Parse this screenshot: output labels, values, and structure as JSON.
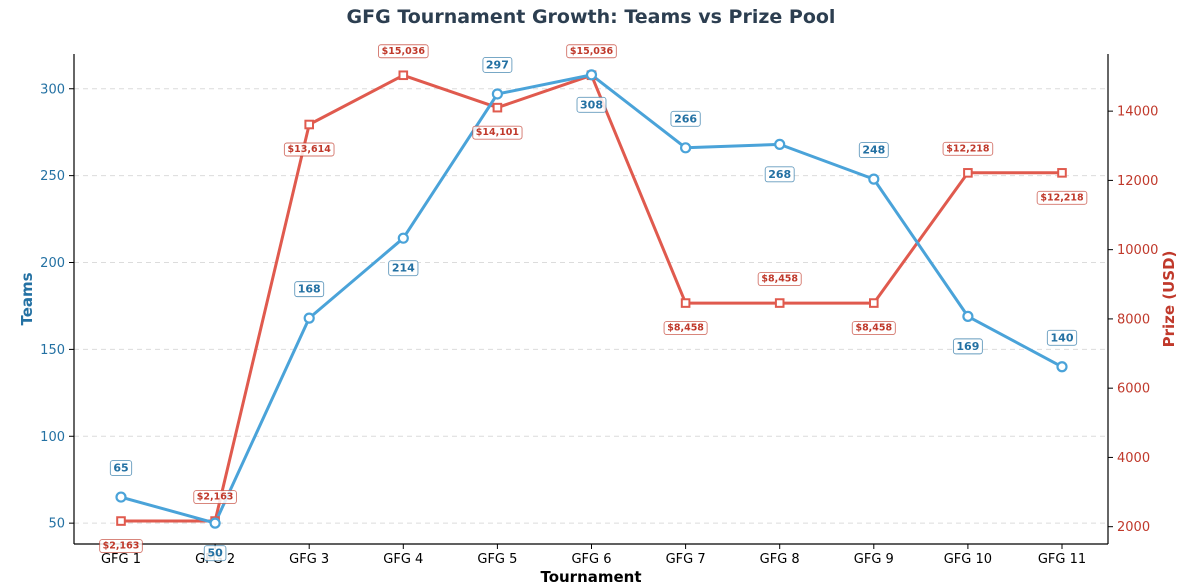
{
  "chart_data": {
    "type": "line",
    "title": "GFG Tournament Growth: Teams vs Prize Pool",
    "xlabel": "Tournament",
    "ylabel_left": "Teams",
    "ylabel_right": "Prize (USD)",
    "categories": [
      "GFG 1",
      "GFG 2",
      "GFG 3",
      "GFG 4",
      "GFG 5",
      "GFG 6",
      "GFG 7",
      "GFG 8",
      "GFG 9",
      "GFG 10",
      "GFG 11"
    ],
    "series": [
      {
        "axis": "left",
        "color": "#4aa3d9",
        "label_color": "#2471a3",
        "marker": "circle",
        "values": [
          65,
          50,
          168,
          214,
          297,
          308,
          266,
          268,
          248,
          169,
          140
        ],
        "labels": [
          "65",
          "50",
          "168",
          "214",
          "297",
          "308",
          "266",
          "268",
          "248",
          "169",
          "140"
        ],
        "label_position": [
          "above",
          "below",
          "above",
          "below",
          "above",
          "below",
          "above",
          "below",
          "above",
          "below",
          "above"
        ]
      },
      {
        "axis": "right",
        "color": "#e05a4e",
        "label_color": "#c0392b",
        "marker": "square",
        "values": [
          2163,
          2163,
          13614,
          15036,
          14101,
          15036,
          8458,
          8458,
          8458,
          12218,
          12218
        ],
        "labels": [
          "$2,163",
          "$2,163",
          "$13,614",
          "$15,036",
          "$14,101",
          "$15,036",
          "$8,458",
          "$8,458",
          "$8,458",
          "$12,218",
          "$12,218"
        ],
        "label_position": [
          "below",
          "above",
          "below",
          "above",
          "below",
          "above",
          "below",
          "above",
          "below",
          "above",
          "below"
        ]
      }
    ],
    "ylim_left": [
      38,
      320
    ],
    "yticks_left": [
      50,
      100,
      150,
      200,
      250,
      300
    ],
    "ylim_right": [
      1500,
      15650
    ],
    "yticks_right": [
      2000,
      4000,
      6000,
      8000,
      10000,
      12000,
      14000
    ],
    "grid": "horizontal-dashed"
  }
}
